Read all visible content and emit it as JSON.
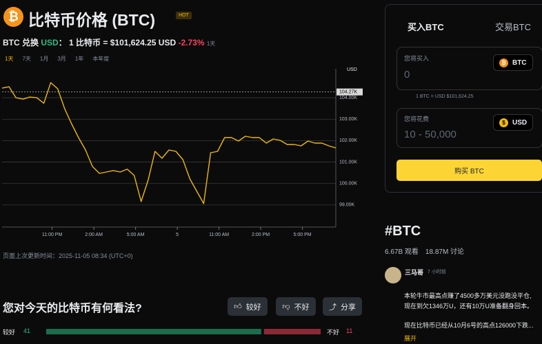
{
  "header": {
    "title": "比特币价格 (BTC)",
    "badge": "HOT",
    "btc_icon": "₿",
    "pair_label": "BTC 兑换",
    "quote": "USD",
    "colon": "：",
    "rate_text": "1 比特币 = $101,624.25 USD",
    "change": "-2.73%",
    "period": "1天"
  },
  "range_tabs": [
    "1天",
    "7天",
    "1月",
    "3月",
    "1年",
    "本年度"
  ],
  "chart_data": {
    "type": "line",
    "y_unit": "USD",
    "grid": true,
    "x": [
      0,
      0.5,
      1,
      1.5,
      2,
      2.5,
      3,
      3.5,
      4,
      4.5,
      5,
      5.5,
      6,
      6.5,
      7,
      7.5,
      8,
      8.5,
      9,
      9.5,
      10,
      10.5,
      11,
      11.5,
      12,
      12.5,
      13,
      13.5,
      14,
      14.5,
      15,
      15.5,
      16,
      16.5,
      17,
      17.5,
      18,
      18.5,
      19,
      19.5,
      20,
      20.5,
      21,
      21.5,
      22,
      22.5,
      23,
      23.5,
      24
    ],
    "series": [
      {
        "color": "#f0b90b",
        "values": [
          104449,
          104513,
          104000,
          103936,
          104032,
          104000,
          103744,
          104705,
          104417,
          103487,
          102782,
          102141,
          101564,
          100795,
          100474,
          100538,
          100603,
          100538,
          100667,
          100378,
          99160,
          100154,
          101500,
          101179,
          101564,
          101500,
          101115,
          100218,
          99641,
          99064,
          101436,
          101500,
          102141,
          102141,
          101981,
          102205,
          102141,
          102141,
          101885,
          102077,
          102013,
          101821,
          101821,
          101756,
          101981,
          101885,
          101885,
          101756,
          101660
        ]
      }
    ],
    "xlim": [
      0,
      24
    ],
    "ylim": [
      97970,
      105350
    ],
    "xticks": [
      {
        "value": 3.6,
        "label": "11:00 PM"
      },
      {
        "value": 6.6,
        "label": "2:00 AM"
      },
      {
        "value": 9.6,
        "label": "5:00 AM"
      },
      {
        "value": 12.6,
        "label": "5"
      },
      {
        "value": 15.6,
        "label": "11:00 AM"
      },
      {
        "value": 18.6,
        "label": "2:00 PM"
      },
      {
        "value": 21.6,
        "label": "5:00 PM"
      }
    ],
    "yticks": [
      {
        "value": 99000,
        "label": "99.00K"
      },
      {
        "value": 100000,
        "label": "100.00K"
      },
      {
        "value": 101000,
        "label": "101.00K"
      },
      {
        "value": 102000,
        "label": "102.00K"
      },
      {
        "value": 103000,
        "label": "103.00K"
      },
      {
        "value": 104000,
        "label": "104.00K"
      }
    ],
    "price_marker": {
      "value": 104270,
      "label": "104.27K"
    }
  },
  "updated": "页面上次更新时间：2025-11-05 08:34 (UTC+0)",
  "sentiment": {
    "question": "您对今天的比特币有何看法?",
    "buttons": [
      "较好",
      "不好",
      "分享"
    ],
    "good_label": "较好",
    "good_count": 41,
    "bad_label": "不好",
    "bad_count": 11
  },
  "trade": {
    "tabs": [
      "买入BTC",
      "交易BTC"
    ],
    "buy_label": "您将买入",
    "buy_placeholder": "0",
    "buy_asset": "BTC",
    "rate_note": "1 BTC = USD $101,624.25",
    "spend_label": "您将花费",
    "spend_placeholder": "10 - 50,000",
    "spend_asset": "USD",
    "usd_icon": "$",
    "submit": "购买 BTC"
  },
  "topic": {
    "tag": "#BTC",
    "views": "6.67B 观看",
    "discussions": "18.87M 讨论"
  },
  "post": {
    "author": "三马哥",
    "time": "7 小时前",
    "lines": [
      "本轮牛市最高点赚了4500多万美元没跑没平仓,",
      "现在到欠1346万U，还有10万U准备翻身回本。",
      "现在比特币已经从10月6号的高点126000下跌..."
    ],
    "more": "展开"
  }
}
